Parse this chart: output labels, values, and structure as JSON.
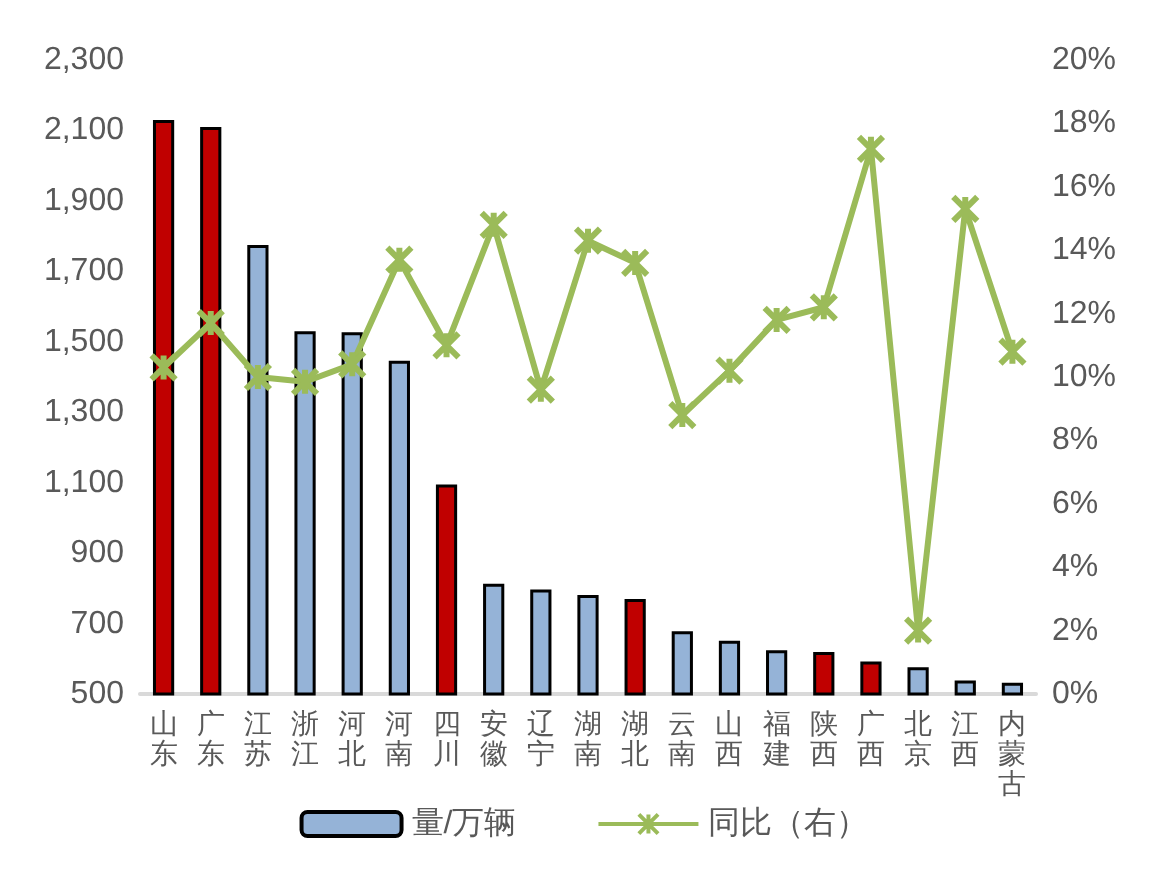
{
  "chart_data": {
    "type": "bar",
    "categories": [
      "山东",
      "广东",
      "江苏",
      "浙江",
      "河北",
      "河南",
      "四川",
      "安徽",
      "辽宁",
      "湖南",
      "湖北",
      "云南",
      "山西",
      "福建",
      "陕西",
      "广西",
      "北京",
      "江西",
      "内蒙古"
    ],
    "series": [
      {
        "name": "量/万辆",
        "color": "#95b3d7",
        "colors": [
          "#c00000",
          "#c00000",
          "#95b3d7",
          "#95b3d7",
          "#95b3d7",
          "#95b3d7",
          "#c00000",
          "#95b3d7",
          "#95b3d7",
          "#95b3d7",
          "#c00000",
          "#95b3d7",
          "#95b3d7",
          "#95b3d7",
          "#c00000",
          "#c00000",
          "#95b3d7",
          "#95b3d7",
          "#95b3d7"
        ],
        "values": [
          2130,
          2110,
          1775,
          1530,
          1527,
          1446,
          1095,
          813,
          797,
          781,
          770,
          678,
          651,
          624,
          619,
          592,
          576,
          538,
          532
        ]
      },
      {
        "name": "同比（右）",
        "type": "line",
        "axis": "y2",
        "color": "#9bbb59",
        "marker": "cross",
        "values": [
          10.3,
          11.7,
          10.0,
          9.85,
          10.4,
          13.7,
          11.0,
          14.8,
          9.6,
          14.3,
          13.6,
          8.8,
          10.2,
          11.8,
          12.2,
          17.2,
          2.0,
          15.3,
          10.8
        ]
      }
    ],
    "ylim": [
      500,
      2300
    ],
    "yticks": [
      {
        "value": 500,
        "label": "500"
      },
      {
        "value": 700,
        "label": "700"
      },
      {
        "value": 900,
        "label": "900"
      },
      {
        "value": 1100,
        "label": "1,100"
      },
      {
        "value": 1300,
        "label": "1,300"
      },
      {
        "value": 1500,
        "label": "1,500"
      },
      {
        "value": 1700,
        "label": "1,700"
      },
      {
        "value": 1900,
        "label": "1,900"
      },
      {
        "value": 2100,
        "label": "2,100"
      },
      {
        "value": 2300,
        "label": "2,300"
      }
    ],
    "y2lim": [
      0,
      20
    ],
    "y2ticks": [
      {
        "value": 0,
        "label": "0%"
      },
      {
        "value": 2,
        "label": "2%"
      },
      {
        "value": 4,
        "label": "4%"
      },
      {
        "value": 6,
        "label": "6%"
      },
      {
        "value": 8,
        "label": "8%"
      },
      {
        "value": 10,
        "label": "10%"
      },
      {
        "value": 12,
        "label": "12%"
      },
      {
        "value": 14,
        "label": "14%"
      },
      {
        "value": 16,
        "label": "16%"
      },
      {
        "value": 18,
        "label": "18%"
      },
      {
        "value": 20,
        "label": "20%"
      }
    ],
    "grid": false,
    "legend": "bottom"
  }
}
